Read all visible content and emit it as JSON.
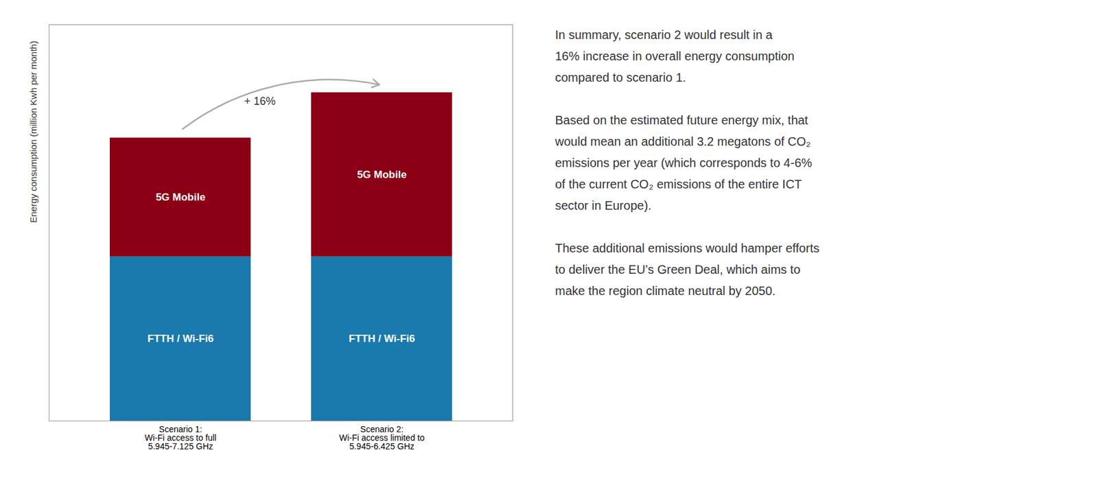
{
  "chart_data": {
    "type": "bar",
    "stacked": true,
    "categories": [
      "Scenario 1:\nWi-Fi access to full\n5.945-7.125 GHz",
      "Scenario 2:\nWi-Fi access limited to\n5.945-6.425 GHz"
    ],
    "series": [
      {
        "name": "FTTH / Wi-Fi6",
        "color": "#1a7aad",
        "values": [
          58,
          58
        ]
      },
      {
        "name": "5G Mobile",
        "color": "#8b0015",
        "values": [
          42,
          58
        ]
      }
    ],
    "ylabel": "Energy consumption (million Kwh per month)",
    "ylim": [
      0,
      140
    ],
    "tick_labels": "x",
    "annotations": [
      "+ 16%"
    ],
    "notes": [
      [
        "In summary, scenario 2 would result in a",
        "16% increase in overall energy consumption",
        "compared to scenario 1."
      ],
      [
        "Based on the estimated future energy mix, that",
        "would mean an additional 3.2 megatons of CO₂",
        "emissions per year (which corresponds to 4-6%",
        "of the current CO₂ emissions of the entire ICT",
        "sector in Europe)."
      ],
      [
        "These additional emissions would hamper efforts",
        "to deliver the EU’s Green Deal, which aims to",
        "make the region climate neutral by 2050."
      ]
    ]
  }
}
